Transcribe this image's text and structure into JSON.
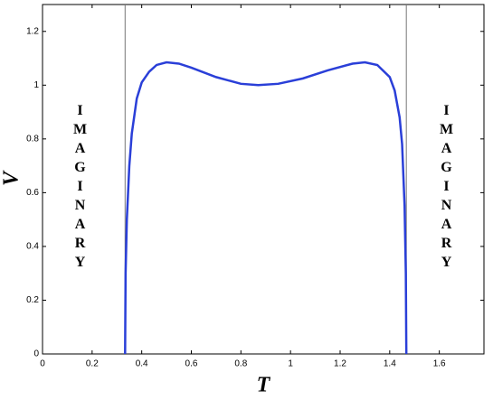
{
  "chart_data": {
    "type": "line",
    "x_label": "T",
    "y_label": "V",
    "xlim": [
      0,
      1.78
    ],
    "ylim": [
      0,
      1.3
    ],
    "xticks": [
      0,
      0.2,
      0.4,
      0.6,
      0.8,
      1,
      1.2,
      1.4,
      1.6
    ],
    "yticks": [
      0,
      0.2,
      0.4,
      0.6,
      0.8,
      1,
      1.2
    ],
    "vlines": [
      0.333,
      1.467
    ],
    "vline_color": "#777777",
    "annotations": [
      "IMAGINARY",
      "IMAGINARY"
    ],
    "series": [
      {
        "color": "#2a3fd8",
        "x": [
          0.333,
          0.335,
          0.34,
          0.35,
          0.36,
          0.38,
          0.4,
          0.43,
          0.46,
          0.5,
          0.55,
          0.6,
          0.7,
          0.8,
          0.87,
          0.95,
          1.05,
          1.15,
          1.25,
          1.3,
          1.35,
          1.4,
          1.42,
          1.44,
          1.45,
          1.46,
          1.465,
          1.467
        ],
        "values": [
          0,
          0.3,
          0.5,
          0.7,
          0.82,
          0.95,
          1.01,
          1.05,
          1.075,
          1.085,
          1.08,
          1.065,
          1.03,
          1.005,
          1.0,
          1.005,
          1.025,
          1.055,
          1.08,
          1.085,
          1.075,
          1.03,
          0.98,
          0.88,
          0.78,
          0.55,
          0.3,
          0
        ]
      }
    ]
  }
}
